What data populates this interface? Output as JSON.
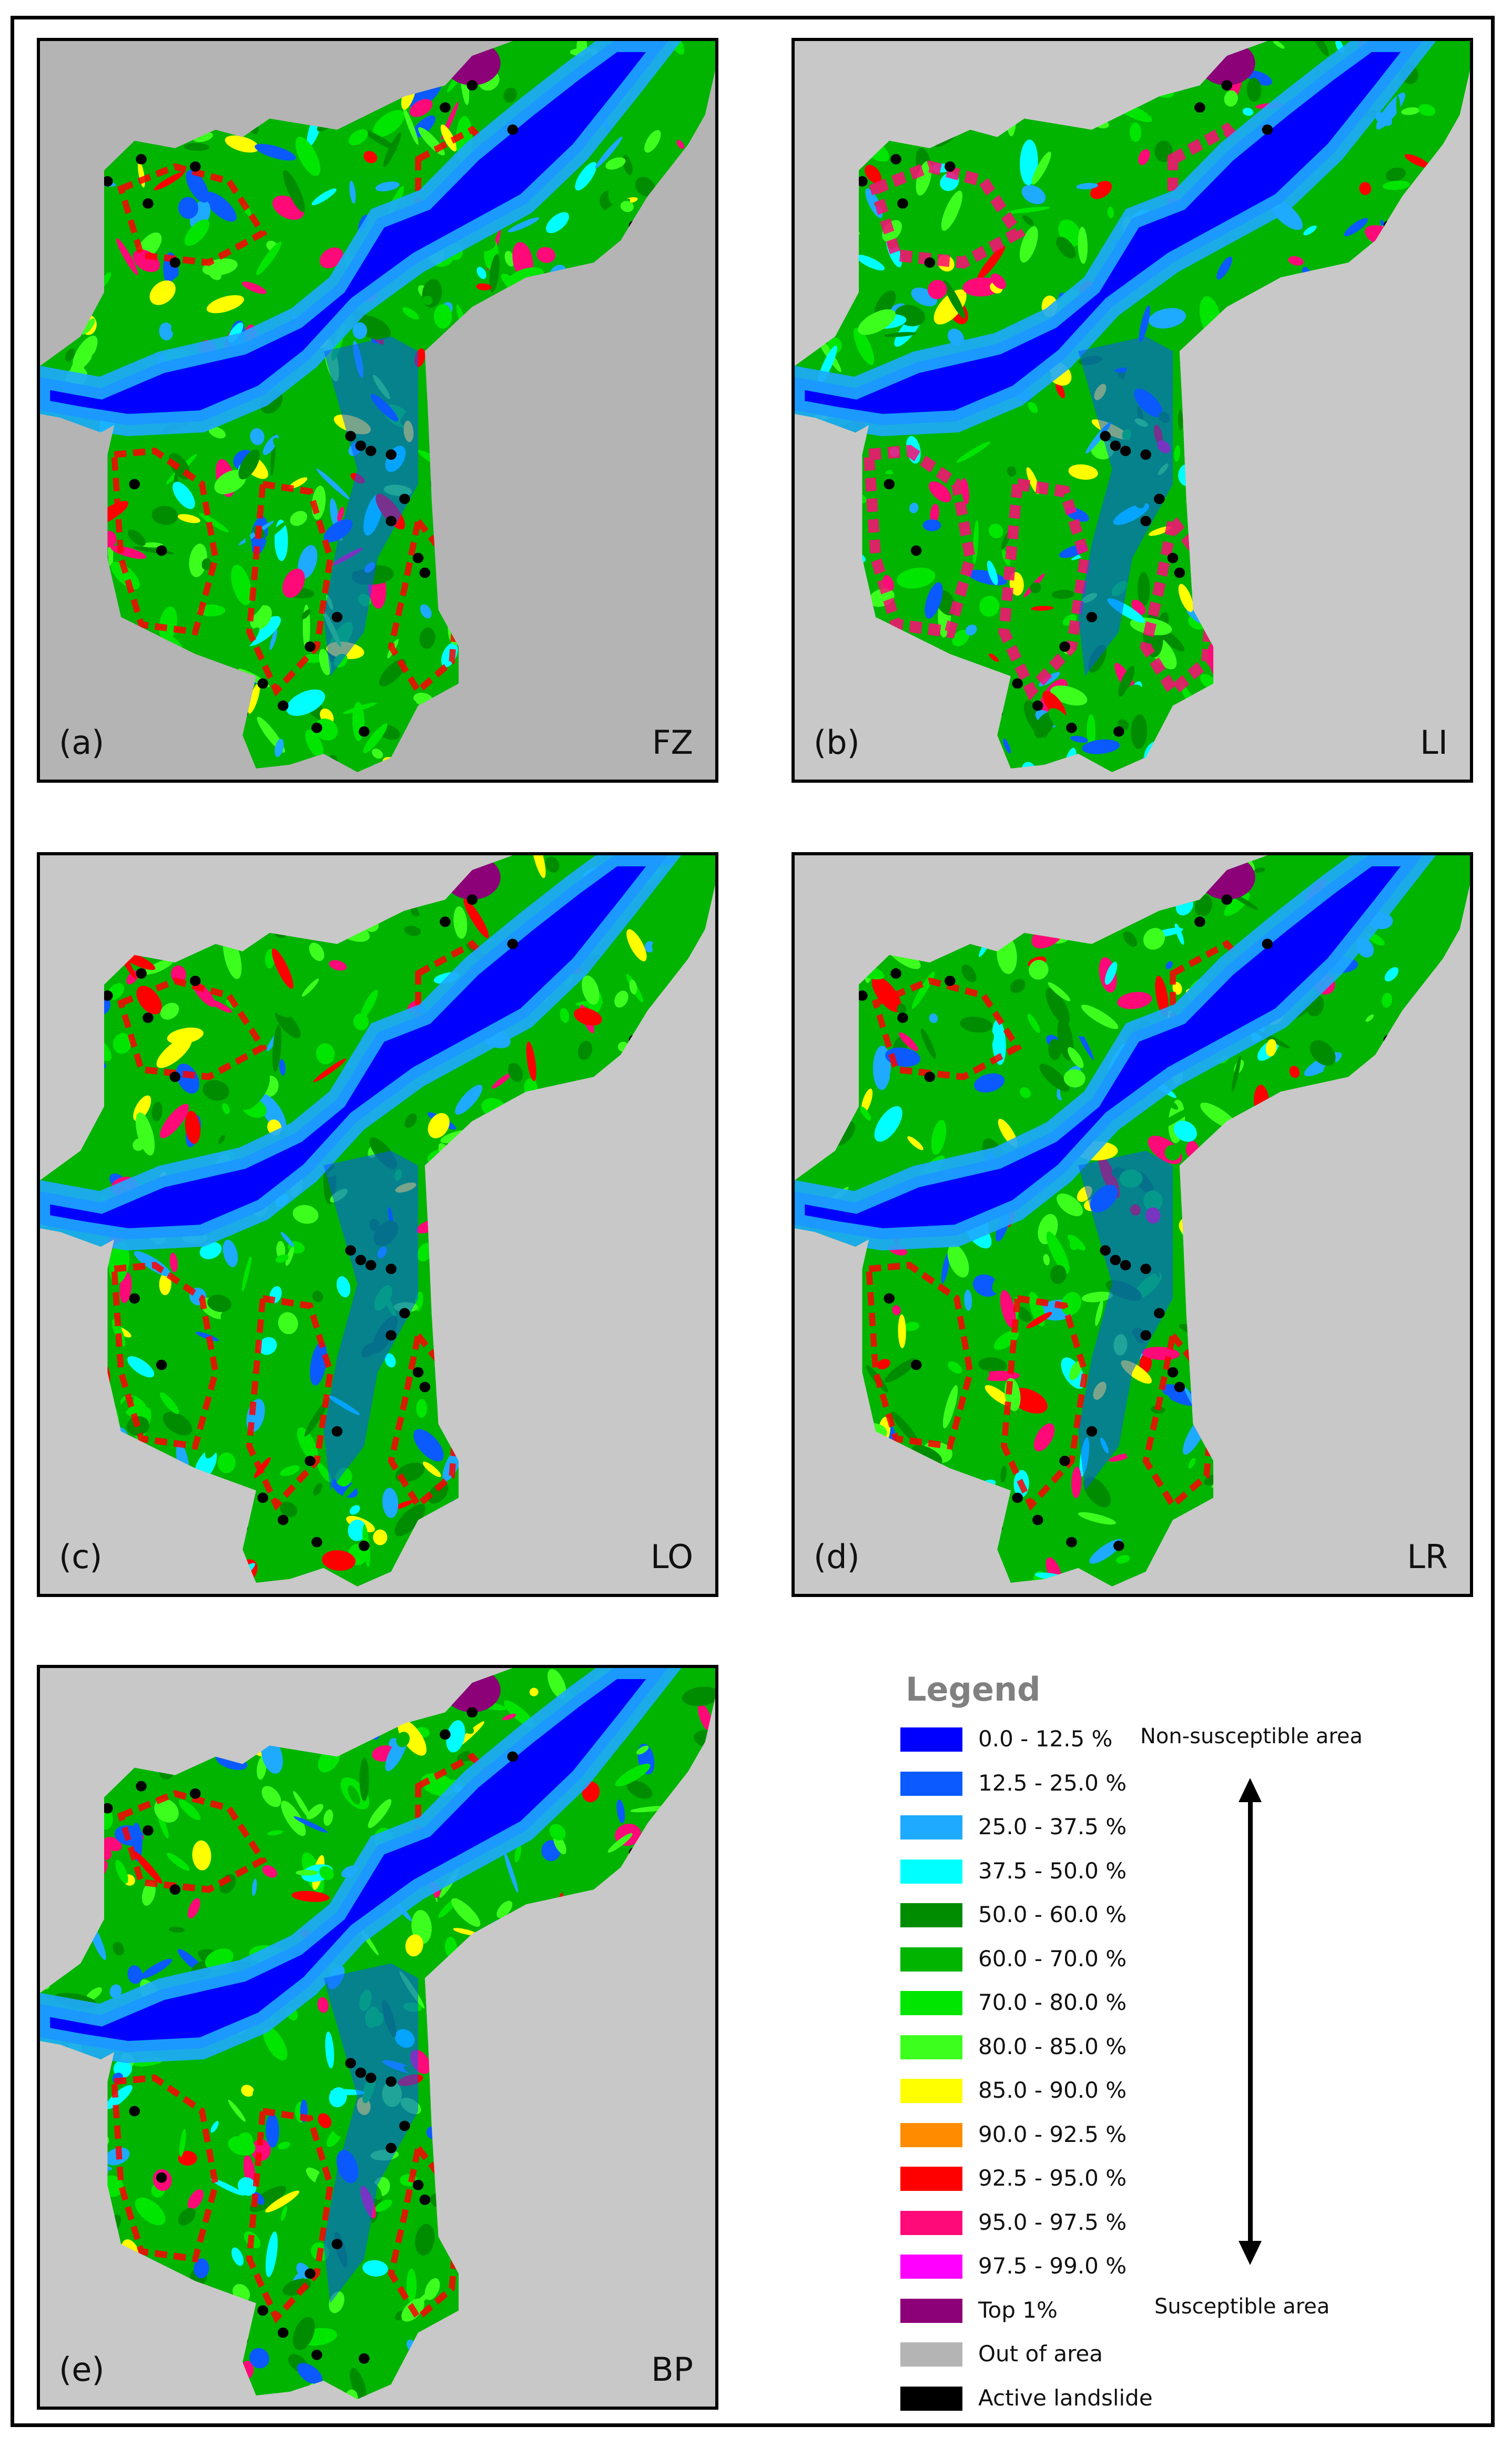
{
  "panels": [
    {
      "id": "a",
      "letter": "(a)",
      "model": "FZ",
      "background": "#b4b4b4"
    },
    {
      "id": "b",
      "letter": "(b)",
      "model": "LI",
      "background": "#c8c8c8"
    },
    {
      "id": "c",
      "letter": "(c)",
      "model": "LO",
      "background": "#c8c8c8"
    },
    {
      "id": "d",
      "letter": "(d)",
      "model": "LR",
      "background": "#c8c8c8"
    },
    {
      "id": "e",
      "letter": "(e)",
      "model": "BP",
      "background": "#c8c8c8"
    }
  ],
  "legend": {
    "title": "Legend",
    "items": [
      {
        "label": "0.0 - 12.5 %",
        "color": "#0000ff"
      },
      {
        "label": "12.5 - 25.0 %",
        "color": "#0a5aff"
      },
      {
        "label": "25.0 - 37.5 %",
        "color": "#1eaaff"
      },
      {
        "label": "37.5 - 50.0 %",
        "color": "#00ffff"
      },
      {
        "label": "50.0 - 60.0 %",
        "color": "#008c00"
      },
      {
        "label": "60.0 - 70.0 %",
        "color": "#00b400"
      },
      {
        "label": "70.0 - 80.0 %",
        "color": "#00e600"
      },
      {
        "label": "80.0 - 85.0 %",
        "color": "#3cff1e"
      },
      {
        "label": "85.0 - 90.0 %",
        "color": "#ffff00"
      },
      {
        "label": "90.0 - 92.5 %",
        "color": "#ff8c00"
      },
      {
        "label": "92.5 - 95.0 %",
        "color": "#ff0000"
      },
      {
        "label": "95.0 - 97.5 %",
        "color": "#ff0a78"
      },
      {
        "label": "97.5 - 99.0 %",
        "color": "#ff00ff"
      },
      {
        "label": "Top 1%",
        "color": "#8c0078"
      },
      {
        "label": "Out of area",
        "color": "#b4b4b4"
      },
      {
        "label": "Active landslide",
        "color": "#000000"
      }
    ],
    "scale_top_label": "Non-susceptible area",
    "scale_bottom_label": "Susceptible area"
  }
}
